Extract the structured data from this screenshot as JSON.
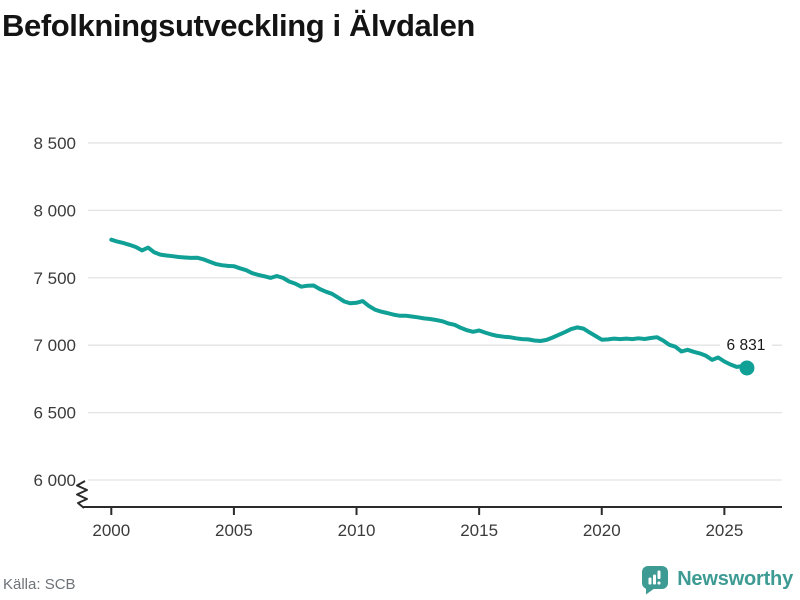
{
  "page": {
    "title": "Befolkningsutveckling i Älvdalen",
    "source": "Källa: SCB",
    "brand": "Newsworthy"
  },
  "colors": {
    "title": "#141414",
    "source": "#6e7378",
    "brand": "#3e9b94"
  },
  "chart_data": {
    "type": "line",
    "title": "Befolkningsutveckling i Älvdalen",
    "xlabel": "",
    "ylabel": "",
    "legend": "none",
    "grid": "horizontal-only",
    "axis_break_bottom_left": true,
    "xlim": [
      1999.05,
      2027.35
    ],
    "ylim": [
      5800,
      8670
    ],
    "xticks": {
      "values": [
        2000,
        2005,
        2010,
        2015,
        2020,
        2025
      ],
      "labels": [
        "2000",
        "2005",
        "2010",
        "2015",
        "2020",
        "2025"
      ]
    },
    "yticks": {
      "values": [
        6000,
        6500,
        7000,
        7500,
        8000,
        8500
      ],
      "labels": [
        "6 000",
        "6 500",
        "7 000",
        "7 500",
        "8 000",
        "8 500"
      ]
    },
    "last_point": {
      "x": 2025.92,
      "value": 6831,
      "label": "6 831"
    },
    "colors": {
      "line": "#10a096",
      "marker": "#10a096",
      "grid": "#e3e3e3",
      "axis": "#2b2b2b",
      "tick_text": "#3b3b3b",
      "label": "#1a1a1a"
    },
    "points": [
      [
        2000.0,
        7782
      ],
      [
        2000.25,
        7768
      ],
      [
        2000.5,
        7757
      ],
      [
        2000.75,
        7744
      ],
      [
        2001.0,
        7728
      ],
      [
        2001.25,
        7703
      ],
      [
        2001.5,
        7724
      ],
      [
        2001.75,
        7689
      ],
      [
        2002.0,
        7672
      ],
      [
        2002.25,
        7665
      ],
      [
        2002.5,
        7660
      ],
      [
        2002.75,
        7654
      ],
      [
        2003.0,
        7650
      ],
      [
        2003.25,
        7647
      ],
      [
        2003.5,
        7649
      ],
      [
        2003.75,
        7637
      ],
      [
        2004.0,
        7620
      ],
      [
        2004.25,
        7603
      ],
      [
        2004.5,
        7593
      ],
      [
        2004.75,
        7588
      ],
      [
        2005.0,
        7586
      ],
      [
        2005.25,
        7570
      ],
      [
        2005.5,
        7556
      ],
      [
        2005.75,
        7534
      ],
      [
        2006.0,
        7521
      ],
      [
        2006.25,
        7511
      ],
      [
        2006.5,
        7499
      ],
      [
        2006.75,
        7513
      ],
      [
        2007.0,
        7499
      ],
      [
        2007.25,
        7472
      ],
      [
        2007.5,
        7457
      ],
      [
        2007.75,
        7434
      ],
      [
        2008.0,
        7441
      ],
      [
        2008.25,
        7443
      ],
      [
        2008.5,
        7417
      ],
      [
        2008.75,
        7397
      ],
      [
        2009.0,
        7381
      ],
      [
        2009.25,
        7353
      ],
      [
        2009.5,
        7324
      ],
      [
        2009.75,
        7311
      ],
      [
        2010.0,
        7314
      ],
      [
        2010.25,
        7327
      ],
      [
        2010.5,
        7291
      ],
      [
        2010.75,
        7264
      ],
      [
        2011.0,
        7249
      ],
      [
        2011.25,
        7239
      ],
      [
        2011.5,
        7227
      ],
      [
        2011.75,
        7219
      ],
      [
        2012.0,
        7219
      ],
      [
        2012.25,
        7213
      ],
      [
        2012.5,
        7207
      ],
      [
        2012.75,
        7199
      ],
      [
        2013.0,
        7194
      ],
      [
        2013.25,
        7187
      ],
      [
        2013.5,
        7177
      ],
      [
        2013.75,
        7161
      ],
      [
        2014.0,
        7151
      ],
      [
        2014.25,
        7129
      ],
      [
        2014.5,
        7111
      ],
      [
        2014.75,
        7099
      ],
      [
        2015.0,
        7109
      ],
      [
        2015.25,
        7093
      ],
      [
        2015.5,
        7079
      ],
      [
        2015.75,
        7069
      ],
      [
        2016.0,
        7063
      ],
      [
        2016.25,
        7059
      ],
      [
        2016.5,
        7051
      ],
      [
        2016.75,
        7045
      ],
      [
        2017.0,
        7043
      ],
      [
        2017.25,
        7035
      ],
      [
        2017.5,
        7031
      ],
      [
        2017.75,
        7039
      ],
      [
        2018.0,
        7057
      ],
      [
        2018.25,
        7077
      ],
      [
        2018.5,
        7097
      ],
      [
        2018.75,
        7119
      ],
      [
        2019.0,
        7132
      ],
      [
        2019.25,
        7123
      ],
      [
        2019.5,
        7095
      ],
      [
        2019.75,
        7068
      ],
      [
        2020.0,
        7041
      ],
      [
        2020.25,
        7043
      ],
      [
        2020.5,
        7049
      ],
      [
        2020.75,
        7045
      ],
      [
        2021.0,
        7049
      ],
      [
        2021.25,
        7045
      ],
      [
        2021.5,
        7051
      ],
      [
        2021.75,
        7046
      ],
      [
        2022.0,
        7053
      ],
      [
        2022.25,
        7059
      ],
      [
        2022.5,
        7035
      ],
      [
        2022.75,
        7003
      ],
      [
        2023.0,
        6989
      ],
      [
        2023.25,
        6953
      ],
      [
        2023.5,
        6966
      ],
      [
        2023.75,
        6951
      ],
      [
        2024.0,
        6939
      ],
      [
        2024.25,
        6921
      ],
      [
        2024.5,
        6891
      ],
      [
        2024.75,
        6909
      ],
      [
        2025.0,
        6879
      ],
      [
        2025.25,
        6857
      ],
      [
        2025.5,
        6839
      ],
      [
        2025.75,
        6845
      ],
      [
        2025.92,
        6831
      ]
    ]
  }
}
